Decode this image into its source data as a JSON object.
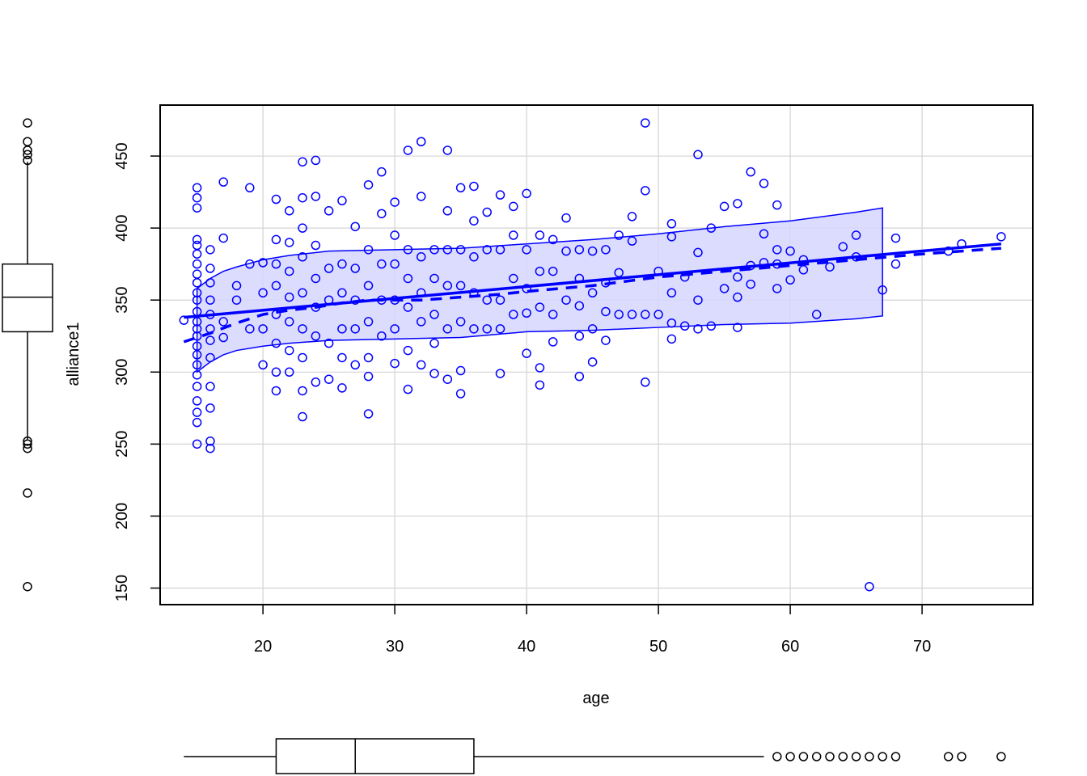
{
  "chart_data": {
    "type": "scatter",
    "title": "",
    "xlabel": "age",
    "ylabel": "alliance1",
    "xlim": [
      12.2,
      78.4
    ],
    "ylim": [
      138.5,
      485.4
    ],
    "x_ticks": [
      20,
      30,
      40,
      50,
      60,
      70
    ],
    "y_ticks": [
      150,
      200,
      250,
      300,
      350,
      400,
      450
    ],
    "grid": true,
    "colors": {
      "points": "#0000ff",
      "band_fill": "#d6d6ff",
      "grid": "#d3d3d3",
      "axes": "#000000"
    },
    "series": [
      {
        "type": "scatter",
        "points": [
          [
            15,
            250
          ],
          [
            15,
            265
          ],
          [
            15,
            272
          ],
          [
            15,
            280
          ],
          [
            15,
            290
          ],
          [
            15,
            298
          ],
          [
            15,
            305
          ],
          [
            15,
            312
          ],
          [
            15,
            318
          ],
          [
            15,
            325
          ],
          [
            15,
            330
          ],
          [
            15,
            335
          ],
          [
            15,
            342
          ],
          [
            15,
            350
          ],
          [
            15,
            355
          ],
          [
            15,
            362
          ],
          [
            15,
            368
          ],
          [
            15,
            375
          ],
          [
            15,
            382
          ],
          [
            15,
            388
          ],
          [
            15,
            392
          ],
          [
            15,
            414
          ],
          [
            15,
            421
          ],
          [
            15,
            428
          ],
          [
            14,
            336
          ],
          [
            16,
            247
          ],
          [
            16,
            252
          ],
          [
            16,
            275
          ],
          [
            16,
            290
          ],
          [
            16,
            310
          ],
          [
            16,
            322
          ],
          [
            16,
            330
          ],
          [
            16,
            340
          ],
          [
            16,
            350
          ],
          [
            16,
            362
          ],
          [
            16,
            372
          ],
          [
            16,
            385
          ],
          [
            17,
            432
          ],
          [
            17,
            393
          ],
          [
            17,
            335
          ],
          [
            17,
            324
          ],
          [
            18,
            360
          ],
          [
            18,
            350
          ],
          [
            19,
            428
          ],
          [
            19,
            375
          ],
          [
            19,
            330
          ],
          [
            20,
            376
          ],
          [
            20,
            355
          ],
          [
            20,
            330
          ],
          [
            20,
            305
          ],
          [
            21,
            420
          ],
          [
            21,
            392
          ],
          [
            21,
            375
          ],
          [
            21,
            360
          ],
          [
            21,
            340
          ],
          [
            21,
            320
          ],
          [
            21,
            300
          ],
          [
            21,
            287
          ],
          [
            22,
            412
          ],
          [
            22,
            390
          ],
          [
            22,
            370
          ],
          [
            22,
            352
          ],
          [
            22,
            335
          ],
          [
            22,
            315
          ],
          [
            22,
            300
          ],
          [
            23,
            446
          ],
          [
            23,
            421
          ],
          [
            23,
            400
          ],
          [
            23,
            380
          ],
          [
            23,
            355
          ],
          [
            23,
            330
          ],
          [
            23,
            310
          ],
          [
            23,
            287
          ],
          [
            23,
            269
          ],
          [
            24,
            447
          ],
          [
            24,
            422
          ],
          [
            24,
            388
          ],
          [
            24,
            365
          ],
          [
            24,
            345
          ],
          [
            24,
            325
          ],
          [
            24,
            293
          ],
          [
            25,
            412
          ],
          [
            25,
            372
          ],
          [
            25,
            350
          ],
          [
            25,
            320
          ],
          [
            25,
            295
          ],
          [
            26,
            419
          ],
          [
            26,
            375
          ],
          [
            26,
            355
          ],
          [
            26,
            330
          ],
          [
            26,
            310
          ],
          [
            26,
            289
          ],
          [
            27,
            401
          ],
          [
            27,
            372
          ],
          [
            27,
            350
          ],
          [
            27,
            330
          ],
          [
            27,
            305
          ],
          [
            28,
            430
          ],
          [
            28,
            385
          ],
          [
            28,
            360
          ],
          [
            28,
            335
          ],
          [
            28,
            310
          ],
          [
            28,
            297
          ],
          [
            28,
            271
          ],
          [
            29,
            439
          ],
          [
            29,
            410
          ],
          [
            29,
            375
          ],
          [
            29,
            350
          ],
          [
            29,
            325
          ],
          [
            30,
            418
          ],
          [
            30,
            395
          ],
          [
            30,
            375
          ],
          [
            30,
            350
          ],
          [
            30,
            330
          ],
          [
            30,
            306
          ],
          [
            31,
            454
          ],
          [
            31,
            385
          ],
          [
            31,
            365
          ],
          [
            31,
            345
          ],
          [
            31,
            315
          ],
          [
            31,
            288
          ],
          [
            32,
            460
          ],
          [
            32,
            422
          ],
          [
            32,
            380
          ],
          [
            32,
            355
          ],
          [
            32,
            335
          ],
          [
            32,
            305
          ],
          [
            33,
            385
          ],
          [
            33,
            365
          ],
          [
            33,
            340
          ],
          [
            33,
            320
          ],
          [
            33,
            299
          ],
          [
            34,
            454
          ],
          [
            34,
            412
          ],
          [
            34,
            385
          ],
          [
            34,
            360
          ],
          [
            34,
            330
          ],
          [
            34,
            295
          ],
          [
            35,
            428
          ],
          [
            35,
            385
          ],
          [
            35,
            360
          ],
          [
            35,
            335
          ],
          [
            35,
            301
          ],
          [
            35,
            285
          ],
          [
            36,
            429
          ],
          [
            36,
            405
          ],
          [
            36,
            380
          ],
          [
            36,
            355
          ],
          [
            36,
            330
          ],
          [
            37,
            411
          ],
          [
            37,
            385
          ],
          [
            37,
            350
          ],
          [
            37,
            330
          ],
          [
            38,
            423
          ],
          [
            38,
            385
          ],
          [
            38,
            350
          ],
          [
            38,
            330
          ],
          [
            38,
            299
          ],
          [
            39,
            415
          ],
          [
            39,
            395
          ],
          [
            39,
            365
          ],
          [
            39,
            340
          ],
          [
            40,
            424
          ],
          [
            40,
            385
          ],
          [
            40,
            358
          ],
          [
            40,
            341
          ],
          [
            40,
            313
          ],
          [
            41,
            395
          ],
          [
            41,
            370
          ],
          [
            41,
            345
          ],
          [
            41,
            303
          ],
          [
            41,
            291
          ],
          [
            42,
            392
          ],
          [
            42,
            370
          ],
          [
            42,
            340
          ],
          [
            42,
            321
          ],
          [
            43,
            407
          ],
          [
            43,
            384
          ],
          [
            43,
            350
          ],
          [
            44,
            385
          ],
          [
            44,
            365
          ],
          [
            44,
            346
          ],
          [
            44,
            325
          ],
          [
            44,
            297
          ],
          [
            45,
            384
          ],
          [
            45,
            355
          ],
          [
            45,
            330
          ],
          [
            45,
            307
          ],
          [
            46,
            385
          ],
          [
            46,
            362
          ],
          [
            46,
            342
          ],
          [
            46,
            322
          ],
          [
            47,
            395
          ],
          [
            47,
            369
          ],
          [
            47,
            340
          ],
          [
            48,
            408
          ],
          [
            48,
            391
          ],
          [
            48,
            340
          ],
          [
            49,
            473
          ],
          [
            49,
            426
          ],
          [
            49,
            340
          ],
          [
            49,
            293
          ],
          [
            50,
            370
          ],
          [
            50,
            340
          ],
          [
            51,
            403
          ],
          [
            51,
            394
          ],
          [
            51,
            355
          ],
          [
            51,
            334
          ],
          [
            51,
            323
          ],
          [
            52,
            366
          ],
          [
            52,
            332
          ],
          [
            53,
            451
          ],
          [
            53,
            383
          ],
          [
            53,
            350
          ],
          [
            53,
            330
          ],
          [
            54,
            400
          ],
          [
            54,
            332
          ],
          [
            55,
            415
          ],
          [
            55,
            358
          ],
          [
            56,
            417
          ],
          [
            56,
            366
          ],
          [
            56,
            352
          ],
          [
            56,
            331
          ],
          [
            57,
            439
          ],
          [
            57,
            374
          ],
          [
            57,
            361
          ],
          [
            58,
            431
          ],
          [
            58,
            396
          ],
          [
            58,
            376
          ],
          [
            59,
            416
          ],
          [
            59,
            385
          ],
          [
            59,
            375
          ],
          [
            59,
            358
          ],
          [
            60,
            384
          ],
          [
            60,
            364
          ],
          [
            61,
            378
          ],
          [
            61,
            371
          ],
          [
            62,
            340
          ],
          [
            63,
            373
          ],
          [
            64,
            387
          ],
          [
            65,
            395
          ],
          [
            65,
            380
          ],
          [
            66,
            151
          ],
          [
            67,
            357
          ],
          [
            68,
            393
          ],
          [
            68,
            375
          ],
          [
            72,
            384
          ],
          [
            73,
            389
          ],
          [
            76,
            394
          ]
        ]
      },
      {
        "type": "line",
        "name": "",
        "style": "solid",
        "x": [
          14,
          76
        ],
        "y": [
          338,
          389
        ]
      },
      {
        "type": "line",
        "name": "",
        "style": "dashed",
        "x": [
          14,
          16,
          18,
          20,
          22,
          24,
          26,
          28,
          30,
          32,
          35,
          38,
          40,
          45,
          50,
          55,
          60,
          65,
          70,
          76
        ],
        "y": [
          321,
          327,
          334,
          340,
          343,
          345,
          348,
          350,
          350,
          350,
          352,
          354,
          356,
          360,
          366,
          370,
          374,
          378,
          382,
          386
        ]
      },
      {
        "type": "band",
        "x": [
          15,
          16,
          17,
          18,
          20,
          22,
          25,
          30,
          35,
          40,
          45,
          50,
          55,
          60,
          65,
          67
        ],
        "upper": [
          358,
          365,
          370,
          373,
          378,
          381,
          384,
          385,
          386,
          389,
          392,
          396,
          401,
          405,
          411,
          414
        ],
        "lower": [
          300,
          307,
          312,
          315,
          318,
          320,
          322,
          323,
          324,
          328,
          329,
          331,
          333,
          334,
          337,
          339
        ]
      }
    ],
    "marginal_boxplots": {
      "x": {
        "min": 14,
        "q1": 21,
        "median": 27,
        "q3": 36,
        "whisker_high": 58,
        "outliers": [
          59,
          60,
          61,
          62,
          63,
          64,
          65,
          66,
          67,
          68,
          72,
          73,
          76
        ]
      },
      "y": {
        "whisker_low": 253,
        "q1": 328,
        "median": 352,
        "q3": 375,
        "whisker_high": 446,
        "outliers": [
          151,
          216,
          247,
          250,
          252,
          447,
          451,
          454,
          460,
          473
        ]
      }
    }
  }
}
